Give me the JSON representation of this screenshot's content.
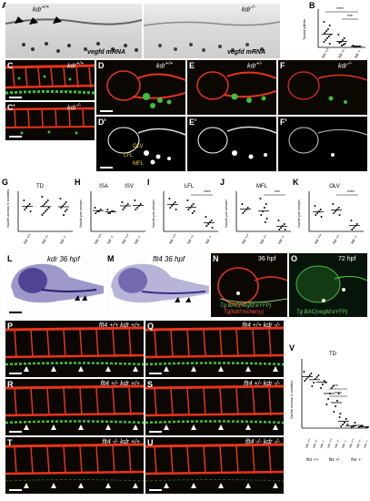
{
  "panels": {
    "A": {
      "letter": "A",
      "genotype_left": "kdr",
      "sup_left": "+/+",
      "genotype_right": "kdr",
      "sup_right": "-/-",
      "mrna_left": "vegfd mRNA",
      "mrna_right": "vegfd mRNA"
    },
    "B": {
      "letter": "B",
      "ylabel": "Tuned afibris",
      "stars1": "****",
      "stars2": "***"
    },
    "C": {
      "letter": "C",
      "genotype": "kdr",
      "sup": "+/+"
    },
    "C2": {
      "letter": "C'",
      "genotype": "kdr",
      "sup": "-/-"
    },
    "D": {
      "letter": "D",
      "genotype": "kdr",
      "sup": "+/+"
    },
    "E": {
      "letter": "E",
      "genotype": "kdr",
      "sup": "+/-"
    },
    "F": {
      "letter": "F",
      "genotype": "kdr",
      "sup": "-/-"
    },
    "D2": {
      "letter": "D'",
      "a1": "OLV",
      "a2": "LFL",
      "a3": "MFL"
    },
    "E2": {
      "letter": "E'"
    },
    "F2": {
      "letter": "F'"
    },
    "G": {
      "letter": "G",
      "title": "TD",
      "ylabel": "Nuclei across 5 somites"
    },
    "H": {
      "letter": "H",
      "title1": "ISA",
      "title2": "ISV",
      "ylabel": "Nuclei per vessel"
    },
    "I": {
      "letter": "I",
      "title": "LFL",
      "ylabel": "Nuclei per vessel",
      "stars": "****"
    },
    "J": {
      "letter": "J",
      "title": "MFL",
      "ylabel": "Nuclei per vessel",
      "stars": "***"
    },
    "K": {
      "letter": "K",
      "title": "OLV",
      "ylabel": "Nuclei per vessel",
      "stars": "****"
    },
    "L": {
      "letter": "L",
      "label": "kdr 36 hpf"
    },
    "M": {
      "letter": "M",
      "label": "flt4 36 hpf"
    },
    "N": {
      "letter": "N",
      "time": "36 hpf",
      "tg1": "Tg BAC(vegfd:eYFP)",
      "tg2": "Tg(kdrl:mcherry)"
    },
    "O": {
      "letter": "O",
      "time": "72 hpf",
      "tg1": "Tg BAC(vegfd:eYFP)"
    },
    "P": {
      "letter": "P",
      "geno": "flt4 +/+ kdr +/+"
    },
    "Q": {
      "letter": "Q",
      "geno": "flt4 +/+ kdr -/-"
    },
    "R": {
      "letter": "R",
      "geno": "flt4 +/- kdr +/+"
    },
    "S": {
      "letter": "S",
      "geno": "flt4 +/- kdr -/-"
    },
    "T": {
      "letter": "T",
      "geno": "flt4 -/- kdr +/+"
    },
    "U": {
      "letter": "U",
      "geno": "flt4 -/- kdr -/-"
    },
    "V": {
      "letter": "V",
      "title": "TD",
      "ylabel": "Nuclei across 5 somites",
      "stars1": "***",
      "stars2": "****"
    }
  },
  "genotype_ticks": [
    "kdr +/+",
    "kdr +/-",
    "kdr -/-"
  ],
  "v_ticks": [
    "kdr +/+",
    "kdr +/-",
    "kdr -/-",
    "kdr +/+",
    "kdr +/-",
    "kdr -/-",
    "kdr +/+",
    "kdr +/-",
    "kdr -/-"
  ],
  "v_groups": [
    "flt4 +/+",
    "flt4 +/-",
    "flt4 -/-"
  ],
  "colors": {
    "red": "#e8341c",
    "green": "#3fbf3a",
    "purple": "#3c2f85",
    "yellow": "#f2d22e"
  }
}
